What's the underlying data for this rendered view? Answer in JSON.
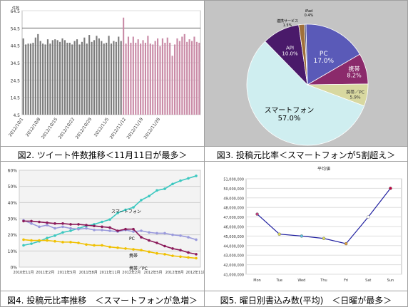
{
  "captions": {
    "fig2": "図2. ツイート件数推移＜11月11日が最多＞",
    "fig3": "図3. 投稿元比率＜スマートフォンが5割超え＞",
    "fig4": "図4. 投稿元比率推移　＜スマートフォンが急増＞",
    "fig5": "図5. 曜日別書込み数(平均)　＜日曜が最多＞"
  },
  "colors": {
    "bar_dark": "#7a7a7a",
    "bar_pink": "#c98aa6",
    "pie_pc": "#5a5ab8",
    "pie_smartphone": "#cfeef0",
    "pie_keitai": "#8b2a6b",
    "pie_keitai_pc": "#d8d8a0",
    "pie_api": "#4a1a6a",
    "pie_renkei": "#a0703a",
    "pie_ipad": "#3a3a6a",
    "line_smartphone": "#3cc8c0",
    "line_pc": "#9a9adc",
    "line_keitai": "#8b1a5a",
    "line_keitai_pc": "#f0c000",
    "weekday_line": "#2020a0",
    "weekday_sun": "#c00040"
  },
  "chart_data": [
    {
      "id": "fig2",
      "type": "bar",
      "title": "",
      "ylabel": "件数",
      "ylim": [
        4.5,
        64.5
      ],
      "yticks": [
        "4.5",
        "14.5",
        "24.5",
        "34.5",
        "44.5",
        "54.5",
        "64.5"
      ],
      "xticklabels": [
        "2012/10/1",
        "2012/10/8",
        "2012/10/15",
        "2012/10/22",
        "2012/10/29",
        "2012/11/5",
        "2012/11/12",
        "2012/11/19",
        "2012/11/26"
      ],
      "grid": true,
      "pink_from_index": 41,
      "values": [
        48.5,
        45,
        45.5,
        45.5,
        46,
        49,
        51,
        47,
        45.5,
        45,
        48,
        45.5,
        47.5,
        48,
        47.5,
        46.5,
        48.5,
        47.5,
        46,
        46,
        45,
        47,
        48,
        45,
        46.5,
        49,
        45.5,
        50.5,
        46.5,
        47.5,
        50,
        48.5,
        47,
        45.5,
        46,
        50,
        45.5,
        47,
        46.5,
        49.5,
        47,
        60.5,
        45.5,
        49.5,
        46,
        49.5,
        46,
        48,
        45.5,
        47.5,
        46,
        50,
        45.5,
        45,
        47,
        48.5,
        44,
        48.5,
        46,
        49,
        46,
        38.5,
        45,
        48.5,
        47,
        49.5,
        51,
        46.5,
        48,
        47,
        49.5,
        46.5,
        46
      ]
    },
    {
      "id": "fig3",
      "type": "pie",
      "title": "",
      "slices": [
        {
          "name": "PC",
          "value": 17.0,
          "label": "17.0%"
        },
        {
          "name": "携帯",
          "value": 8.2,
          "label": "8.2%"
        },
        {
          "name": "携帯／PC",
          "value": 5.9,
          "label": "5.9%"
        },
        {
          "name": "スマートフォン",
          "value": 57.0,
          "label": "57.0%"
        },
        {
          "name": "API",
          "value": 10.0,
          "label": "10.0%"
        },
        {
          "name": "連携サービス",
          "value": 1.5,
          "label": "1.5%"
        },
        {
          "name": "iPad",
          "value": 0.4,
          "label": "0.4%"
        }
      ]
    },
    {
      "id": "fig4",
      "type": "line",
      "title": "",
      "ylim": [
        0,
        60
      ],
      "yticks": [
        "0%",
        "10%",
        "20%",
        "30%",
        "40%",
        "50%",
        "60%"
      ],
      "xticklabels": [
        "2010年11月",
        "2011年2月",
        "2011年5月",
        "2011年8月",
        "2011年11月",
        "2012年2月",
        "2012年5月",
        "2012年8月",
        "2012年11月"
      ],
      "series": [
        {
          "name": "スマートフォン",
          "values": [
            13.5,
            14.5,
            16,
            18,
            19.5,
            21.5,
            22.5,
            24,
            25.5,
            26.5,
            28,
            29.5,
            33.5,
            35.5,
            37,
            41.5,
            44,
            47.5,
            48.5,
            51.5,
            53.5,
            55,
            56.5
          ]
        },
        {
          "name": "PC",
          "values": [
            29,
            27,
            25,
            26,
            24,
            25,
            24,
            23.5,
            24,
            23,
            23,
            22.5,
            22,
            23,
            22,
            22.5,
            21.5,
            21,
            21,
            20,
            19.5,
            18.5,
            17
          ]
        },
        {
          "name": "携帯",
          "values": [
            28.5,
            28.5,
            28,
            27.5,
            27,
            27,
            26.5,
            26.5,
            26,
            25.5,
            25,
            24.5,
            22.5,
            23.5,
            23.5,
            18.5,
            16.5,
            15,
            13,
            11.5,
            10.5,
            9,
            8
          ]
        },
        {
          "name": "携帯／PC",
          "values": [
            17,
            16.5,
            16.5,
            16.5,
            16,
            15.5,
            15.5,
            15,
            14,
            13.5,
            13.5,
            12.5,
            12,
            11.5,
            11,
            10.5,
            9.5,
            8.5,
            8,
            7,
            6.5,
            6,
            5.5
          ]
        }
      ]
    },
    {
      "id": "fig5",
      "type": "line",
      "title": "平均値",
      "ylim": [
        41000000,
        51000000
      ],
      "yticks": [
        "41,000,000",
        "42,000,000",
        "43,000,000",
        "44,000,000",
        "45,000,000",
        "46,000,000",
        "47,000,000",
        "48,000,000",
        "49,000,000",
        "50,000,000",
        "51,000,000"
      ],
      "categories": [
        "Mon",
        "Tue",
        "Wed",
        "Thu",
        "Fri",
        "Sat",
        "Sun"
      ],
      "series": [
        {
          "values": [
            47300000,
            45200000,
            45000000,
            44750000,
            44200000,
            47000000,
            50000000
          ]
        }
      ]
    }
  ]
}
